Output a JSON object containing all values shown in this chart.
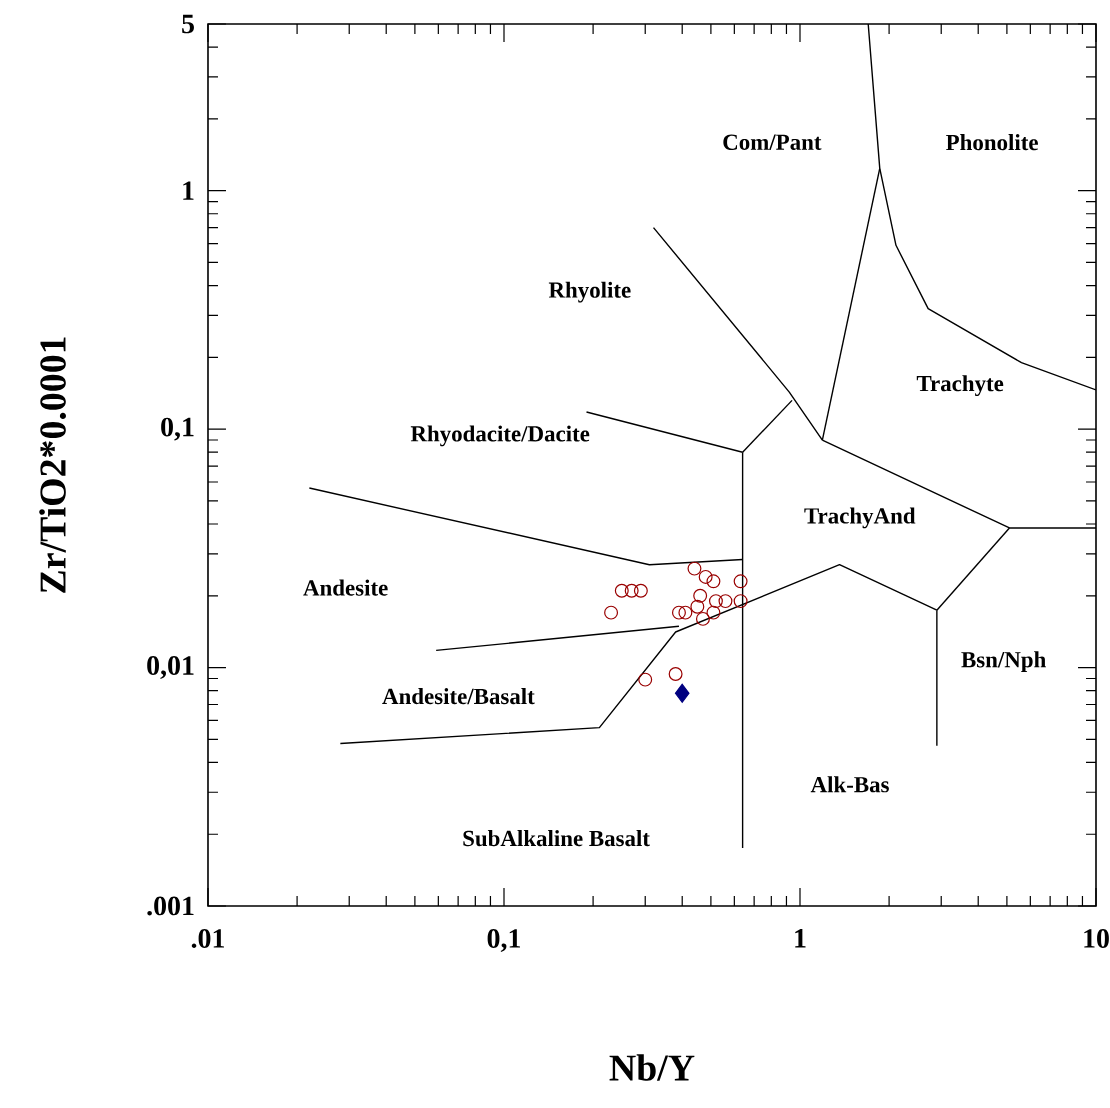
{
  "chart_data": {
    "type": "scatter",
    "xlabel": "Nb/Y",
    "ylabel": "Zr/TiO2*0.0001",
    "log": "xy",
    "grid": false,
    "xlim": [
      0.01,
      10
    ],
    "ylim": [
      0.001,
      5
    ],
    "xticks": [
      {
        "value": 0.01,
        "label": ".01"
      },
      {
        "value": 0.1,
        "label": "0,1"
      },
      1,
      10
    ],
    "yticks": [
      {
        "value": 0.001,
        "label": ".001"
      },
      {
        "value": 0.01,
        "label": "0,01"
      },
      {
        "value": 0.1,
        "label": "0,1"
      },
      1,
      5
    ],
    "series": [
      {
        "type": "line",
        "color": "#000000",
        "marker": "none",
        "x": [
          1.7,
          1.86,
          2.11,
          2.71,
          5.6,
          10
        ],
        "values": [
          5,
          1.24,
          0.59,
          0.32,
          0.19,
          0.146
        ]
      },
      {
        "type": "line",
        "color": "#000000",
        "marker": "none",
        "x": [
          1.86,
          1.19
        ],
        "values": [
          1.24,
          0.09
        ]
      },
      {
        "type": "line",
        "color": "#000000",
        "marker": "none",
        "x": [
          0.32,
          0.92,
          1.19
        ],
        "values": [
          0.7,
          0.143,
          0.09
        ]
      },
      {
        "type": "line",
        "color": "#000000",
        "marker": "none",
        "x": [
          0.94,
          0.64
        ],
        "values": [
          0.132,
          0.08
        ]
      },
      {
        "type": "line",
        "color": "#000000",
        "marker": "none",
        "x": [
          0.19,
          0.64
        ],
        "values": [
          0.118,
          0.08
        ]
      },
      {
        "type": "line",
        "color": "#000000",
        "marker": "none",
        "x": [
          0.64,
          0.64
        ],
        "values": [
          0.08,
          0.00175
        ]
      },
      {
        "type": "line",
        "color": "#000000",
        "marker": "none",
        "x": [
          1.19,
          5.1,
          10
        ],
        "values": [
          0.09,
          0.0385,
          0.0385
        ]
      },
      {
        "type": "line",
        "color": "#000000",
        "marker": "none",
        "x": [
          5.1,
          2.9
        ],
        "values": [
          0.0385,
          0.0174
        ]
      },
      {
        "type": "line",
        "color": "#000000",
        "marker": "none",
        "x": [
          2.9,
          2.9
        ],
        "values": [
          0.0174,
          0.0047
        ]
      },
      {
        "type": "line",
        "color": "#000000",
        "marker": "none",
        "x": [
          0.028,
          0.21,
          0.38,
          1.36,
          2.9
        ],
        "values": [
          0.0048,
          0.0056,
          0.0141,
          0.027,
          0.0174
        ]
      },
      {
        "type": "line",
        "color": "#000000",
        "marker": "none",
        "x": [
          0.059,
          0.39
        ],
        "values": [
          0.0118,
          0.0149
        ]
      },
      {
        "type": "line",
        "color": "#000000",
        "marker": "none",
        "x": [
          0.022,
          0.31,
          0.64
        ],
        "values": [
          0.0566,
          0.027,
          0.0284
        ]
      },
      {
        "color": "#990000",
        "marker": "circle",
        "x": [
          0.23,
          0.25,
          0.27,
          0.29,
          0.44,
          0.48,
          0.51,
          0.63,
          0.63,
          0.39,
          0.41,
          0.45,
          0.47,
          0.51,
          0.56,
          0.46,
          0.52,
          0.3,
          0.38
        ],
        "values": [
          0.017,
          0.021,
          0.021,
          0.021,
          0.026,
          0.024,
          0.023,
          0.023,
          0.019,
          0.017,
          0.017,
          0.018,
          0.016,
          0.017,
          0.019,
          0.02,
          0.019,
          0.0089,
          0.0094
        ]
      },
      {
        "color": "#000080",
        "marker": "diamond",
        "x": [
          0.4
        ],
        "values": [
          0.0078
        ]
      }
    ],
    "annotations": [
      "Com/Pant",
      "Phonolite",
      "Rhyolite",
      "Trachyte",
      "Rhyodacite/Dacite",
      "TrachyAnd",
      "Andesite",
      "Bsn/Nph",
      "Andesite/Basalt",
      "Alk-Bas",
      "SubAlkaline Basalt"
    ]
  }
}
